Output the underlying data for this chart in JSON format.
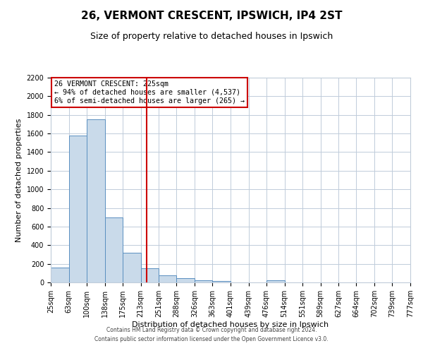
{
  "title": "26, VERMONT CRESCENT, IPSWICH, IP4 2ST",
  "subtitle": "Size of property relative to detached houses in Ipswich",
  "xlabel": "Distribution of detached houses by size in Ipswich",
  "ylabel": "Number of detached properties",
  "bar_edges": [
    25,
    63,
    100,
    138,
    175,
    213,
    251,
    288,
    326,
    363,
    401,
    439,
    476,
    514,
    551,
    589,
    627,
    664,
    702,
    739,
    777
  ],
  "bar_heights": [
    160,
    1580,
    1750,
    700,
    315,
    150,
    75,
    45,
    20,
    15,
    0,
    0,
    20,
    0,
    0,
    0,
    0,
    0,
    0,
    0
  ],
  "bar_color": "#c9daea",
  "bar_edge_color": "#5a8fc0",
  "property_size": 225,
  "vline_color": "#cc0000",
  "annotation_line1": "26 VERMONT CRESCENT: 225sqm",
  "annotation_line2": "← 94% of detached houses are smaller (4,537)",
  "annotation_line3": "6% of semi-detached houses are larger (265) →",
  "annotation_box_color": "#ffffff",
  "annotation_box_edge": "#cc0000",
  "ylim": [
    0,
    2200
  ],
  "yticks": [
    0,
    200,
    400,
    600,
    800,
    1000,
    1200,
    1400,
    1600,
    1800,
    2000,
    2200
  ],
  "footer_line1": "Contains HM Land Registry data © Crown copyright and database right 2024.",
  "footer_line2": "Contains public sector information licensed under the Open Government Licence v3.0.",
  "bg_color": "#ffffff",
  "grid_color": "#c0ccda",
  "title_fontsize": 11,
  "subtitle_fontsize": 9,
  "tick_labels": [
    "25sqm",
    "63sqm",
    "100sqm",
    "138sqm",
    "175sqm",
    "213sqm",
    "251sqm",
    "288sqm",
    "326sqm",
    "363sqm",
    "401sqm",
    "439sqm",
    "476sqm",
    "514sqm",
    "551sqm",
    "589sqm",
    "627sqm",
    "664sqm",
    "702sqm",
    "739sqm",
    "777sqm"
  ]
}
